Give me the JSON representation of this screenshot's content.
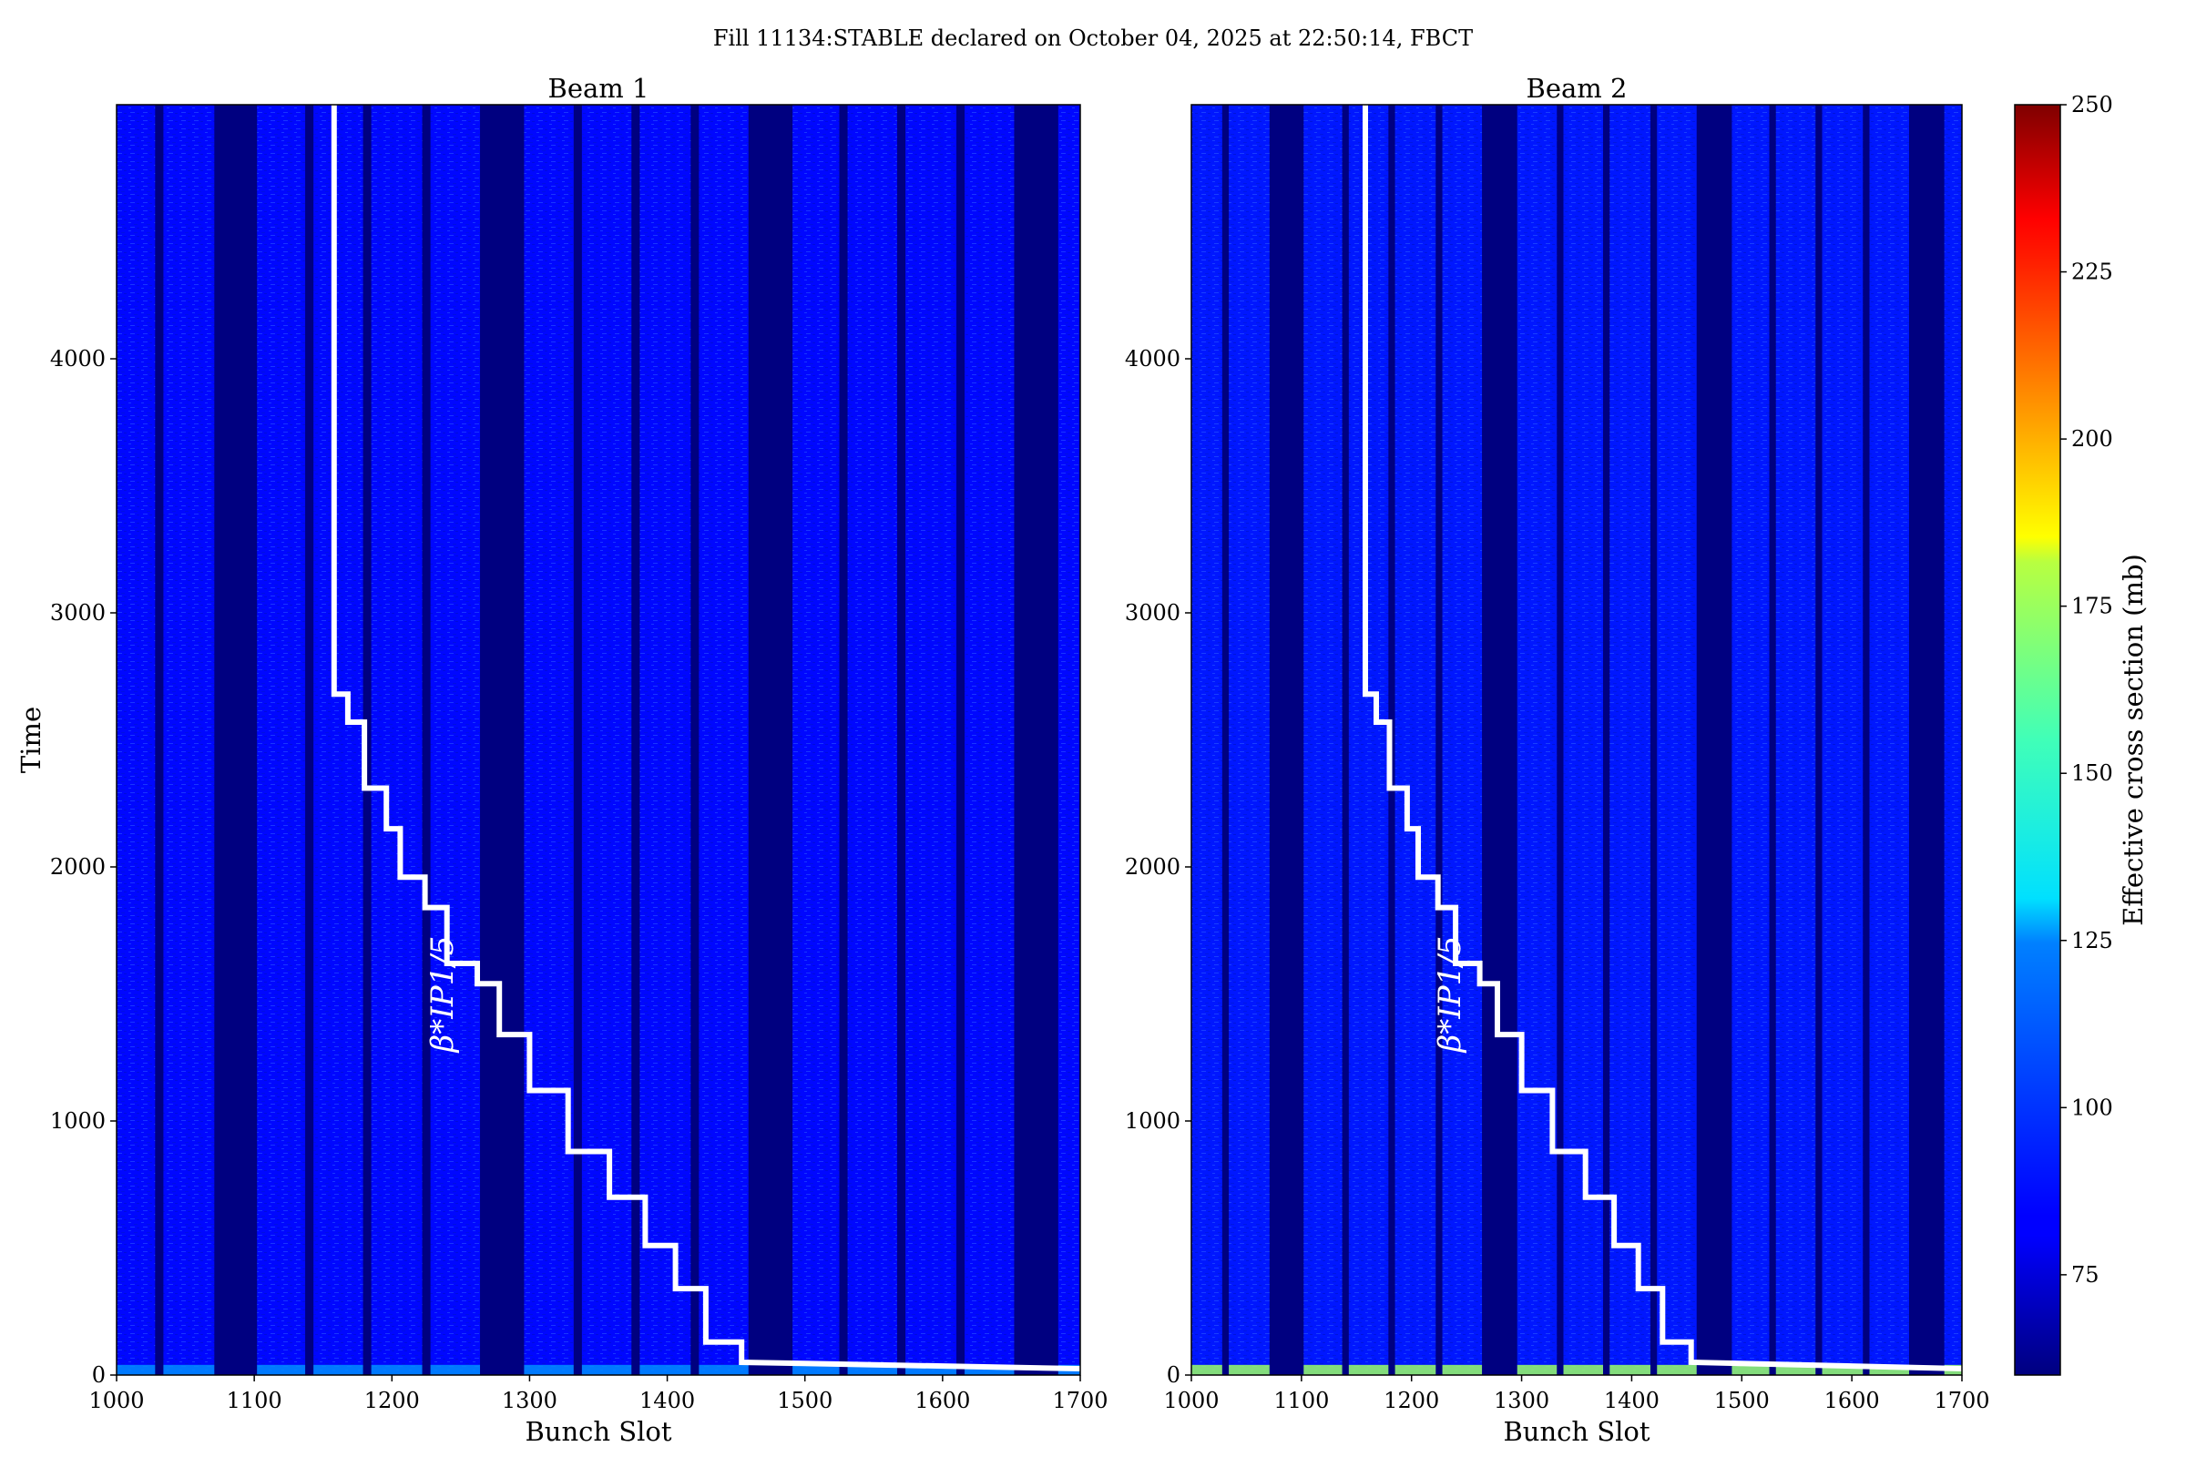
{
  "figure": {
    "suptitle": "Fill 11134:STABLE declared on October 04, 2025 at 22:50:14, FBCT"
  },
  "colorbar": {
    "label": "Effective cross section (mb)",
    "min": 60,
    "max": 250,
    "ticks": [
      75,
      100,
      125,
      150,
      175,
      200,
      225,
      250
    ],
    "colormap": "jet"
  },
  "annotation_label": "β*IP1/5",
  "chart_data": [
    {
      "type": "heatmap",
      "title": "Beam 1",
      "xlabel": "Bunch Slot",
      "ylabel": "Time",
      "xlim": [
        1000,
        1700
      ],
      "ylim": [
        0,
        5000
      ],
      "xticks": [
        1000,
        1100,
        1200,
        1300,
        1400,
        1500,
        1600,
        1700
      ],
      "yticks": [
        0,
        1000,
        2000,
        3000,
        4000
      ],
      "empty_slot_ranges": [
        [
          1028,
          1034
        ],
        [
          1071,
          1102
        ],
        [
          1137,
          1143
        ],
        [
          1179,
          1185
        ],
        [
          1222,
          1228
        ],
        [
          1264,
          1296
        ],
        [
          1332,
          1338
        ],
        [
          1374,
          1380
        ],
        [
          1417,
          1423
        ],
        [
          1459,
          1491
        ],
        [
          1525,
          1531
        ],
        [
          1567,
          1573
        ],
        [
          1610,
          1616
        ],
        [
          1652,
          1684
        ]
      ],
      "typical_cross_section_mb": 85,
      "early_time_cross_section_mb": 110,
      "overlay_line": {
        "name": "β*IP1/5",
        "color": "#ffffff",
        "points": [
          [
            1158,
            5000
          ],
          [
            1158,
            2680
          ],
          [
            1168,
            2680
          ],
          [
            1168,
            2570
          ],
          [
            1180,
            2570
          ],
          [
            1180,
            2310
          ],
          [
            1196,
            2310
          ],
          [
            1196,
            2150
          ],
          [
            1206,
            2150
          ],
          [
            1206,
            1960
          ],
          [
            1224,
            1960
          ],
          [
            1224,
            1840
          ],
          [
            1240,
            1840
          ],
          [
            1240,
            1620
          ],
          [
            1262,
            1620
          ],
          [
            1262,
            1540
          ],
          [
            1278,
            1540
          ],
          [
            1278,
            1340
          ],
          [
            1300,
            1340
          ],
          [
            1300,
            1120
          ],
          [
            1328,
            1120
          ],
          [
            1328,
            880
          ],
          [
            1358,
            880
          ],
          [
            1358,
            700
          ],
          [
            1384,
            700
          ],
          [
            1384,
            510
          ],
          [
            1406,
            510
          ],
          [
            1406,
            340
          ],
          [
            1428,
            340
          ],
          [
            1428,
            130
          ],
          [
            1454,
            130
          ],
          [
            1454,
            50
          ],
          [
            1700,
            25
          ]
        ]
      }
    },
    {
      "type": "heatmap",
      "title": "Beam 2",
      "xlabel": "Bunch Slot",
      "ylabel": "",
      "xlim": [
        1000,
        1700
      ],
      "ylim": [
        0,
        5000
      ],
      "xticks": [
        1000,
        1100,
        1200,
        1300,
        1400,
        1500,
        1600,
        1700
      ],
      "yticks": [
        0,
        1000,
        2000,
        3000,
        4000
      ],
      "empty_slot_ranges": [
        [
          1028,
          1034
        ],
        [
          1071,
          1102
        ],
        [
          1137,
          1143
        ],
        [
          1179,
          1185
        ],
        [
          1222,
          1228
        ],
        [
          1264,
          1296
        ],
        [
          1332,
          1338
        ],
        [
          1374,
          1380
        ],
        [
          1417,
          1423
        ],
        [
          1459,
          1491
        ],
        [
          1525,
          1531
        ],
        [
          1567,
          1573
        ],
        [
          1610,
          1616
        ],
        [
          1652,
          1684
        ]
      ],
      "typical_cross_section_mb": 88,
      "early_time_cross_section_mb": 160,
      "overlay_line": {
        "name": "β*IP1/5",
        "color": "#ffffff",
        "points": [
          [
            1158,
            5000
          ],
          [
            1158,
            2680
          ],
          [
            1168,
            2680
          ],
          [
            1168,
            2570
          ],
          [
            1180,
            2570
          ],
          [
            1180,
            2310
          ],
          [
            1196,
            2310
          ],
          [
            1196,
            2150
          ],
          [
            1206,
            2150
          ],
          [
            1206,
            1960
          ],
          [
            1224,
            1960
          ],
          [
            1224,
            1840
          ],
          [
            1240,
            1840
          ],
          [
            1240,
            1620
          ],
          [
            1262,
            1620
          ],
          [
            1262,
            1540
          ],
          [
            1278,
            1540
          ],
          [
            1278,
            1340
          ],
          [
            1300,
            1340
          ],
          [
            1300,
            1120
          ],
          [
            1328,
            1120
          ],
          [
            1328,
            880
          ],
          [
            1358,
            880
          ],
          [
            1358,
            700
          ],
          [
            1384,
            700
          ],
          [
            1384,
            510
          ],
          [
            1406,
            510
          ],
          [
            1406,
            340
          ],
          [
            1428,
            340
          ],
          [
            1428,
            130
          ],
          [
            1454,
            130
          ],
          [
            1454,
            50
          ],
          [
            1700,
            25
          ]
        ]
      }
    }
  ]
}
